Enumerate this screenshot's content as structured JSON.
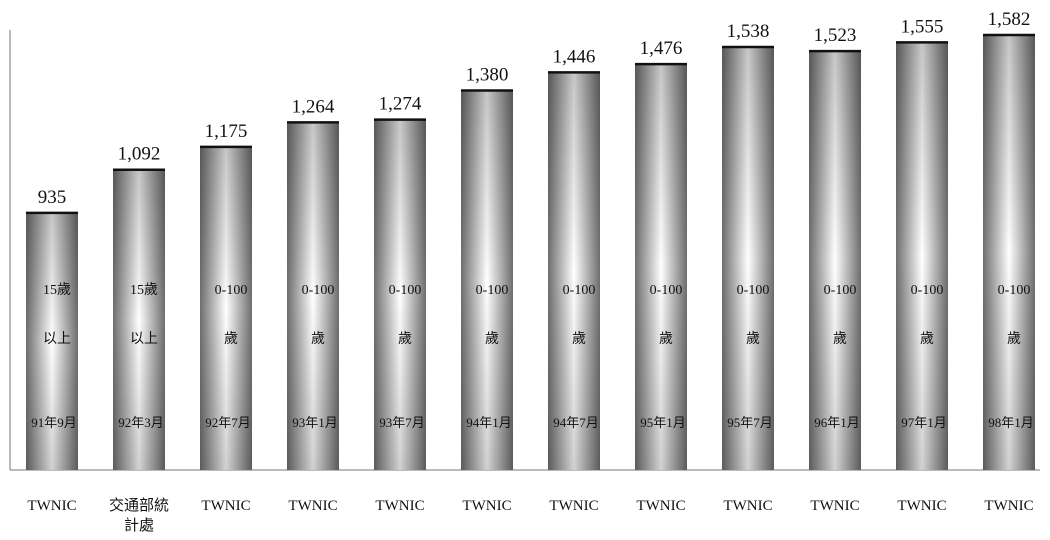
{
  "chart_data": {
    "type": "bar",
    "title": "",
    "xlabel": "",
    "ylabel": "",
    "ylim": [
      0,
      1600
    ],
    "grid": false,
    "legend": "none",
    "colors": {
      "bar_edge": "#6e6e6e",
      "bar_center": "#ffffff",
      "bar_top": "#111111"
    },
    "bars": [
      {
        "value": 935,
        "value_label": "935",
        "source": [
          "TWNIC"
        ],
        "age": [
          "15歲",
          "以上"
        ],
        "date": "91年9月"
      },
      {
        "value": 1092,
        "value_label": "1,092",
        "source": [
          "交通部統",
          "計處"
        ],
        "age": [
          "15歲",
          "以上"
        ],
        "date": "92年3月"
      },
      {
        "value": 1175,
        "value_label": "1,175",
        "source": [
          "TWNIC"
        ],
        "age": [
          "0-100",
          "歲"
        ],
        "date": "92年7月"
      },
      {
        "value": 1264,
        "value_label": "1,264",
        "source": [
          "TWNIC"
        ],
        "age": [
          "0-100",
          "歲"
        ],
        "date": "93年1月"
      },
      {
        "value": 1274,
        "value_label": "1,274",
        "source": [
          "TWNIC"
        ],
        "age": [
          "0-100",
          "歲"
        ],
        "date": "93年7月"
      },
      {
        "value": 1380,
        "value_label": "1,380",
        "source": [
          "TWNIC"
        ],
        "age": [
          "0-100",
          "歲"
        ],
        "date": "94年1月"
      },
      {
        "value": 1446,
        "value_label": "1,446",
        "source": [
          "TWNIC"
        ],
        "age": [
          "0-100",
          "歲"
        ],
        "date": "94年7月"
      },
      {
        "value": 1476,
        "value_label": "1,476",
        "source": [
          "TWNIC"
        ],
        "age": [
          "0-100",
          "歲"
        ],
        "date": "95年1月"
      },
      {
        "value": 1538,
        "value_label": "1,538",
        "source": [
          "TWNIC"
        ],
        "age": [
          "0-100",
          "歲"
        ],
        "date": "95年7月"
      },
      {
        "value": 1523,
        "value_label": "1,523",
        "source": [
          "TWNIC"
        ],
        "age": [
          "0-100",
          "歲"
        ],
        "date": "96年1月"
      },
      {
        "value": 1555,
        "value_label": "1,555",
        "source": [
          "TWNIC"
        ],
        "age": [
          "0-100",
          "歲"
        ],
        "date": "97年1月"
      },
      {
        "value": 1582,
        "value_label": "1,582",
        "source": [
          "TWNIC"
        ],
        "age": [
          "0-100",
          "歲"
        ],
        "date": "98年1月"
      }
    ]
  }
}
